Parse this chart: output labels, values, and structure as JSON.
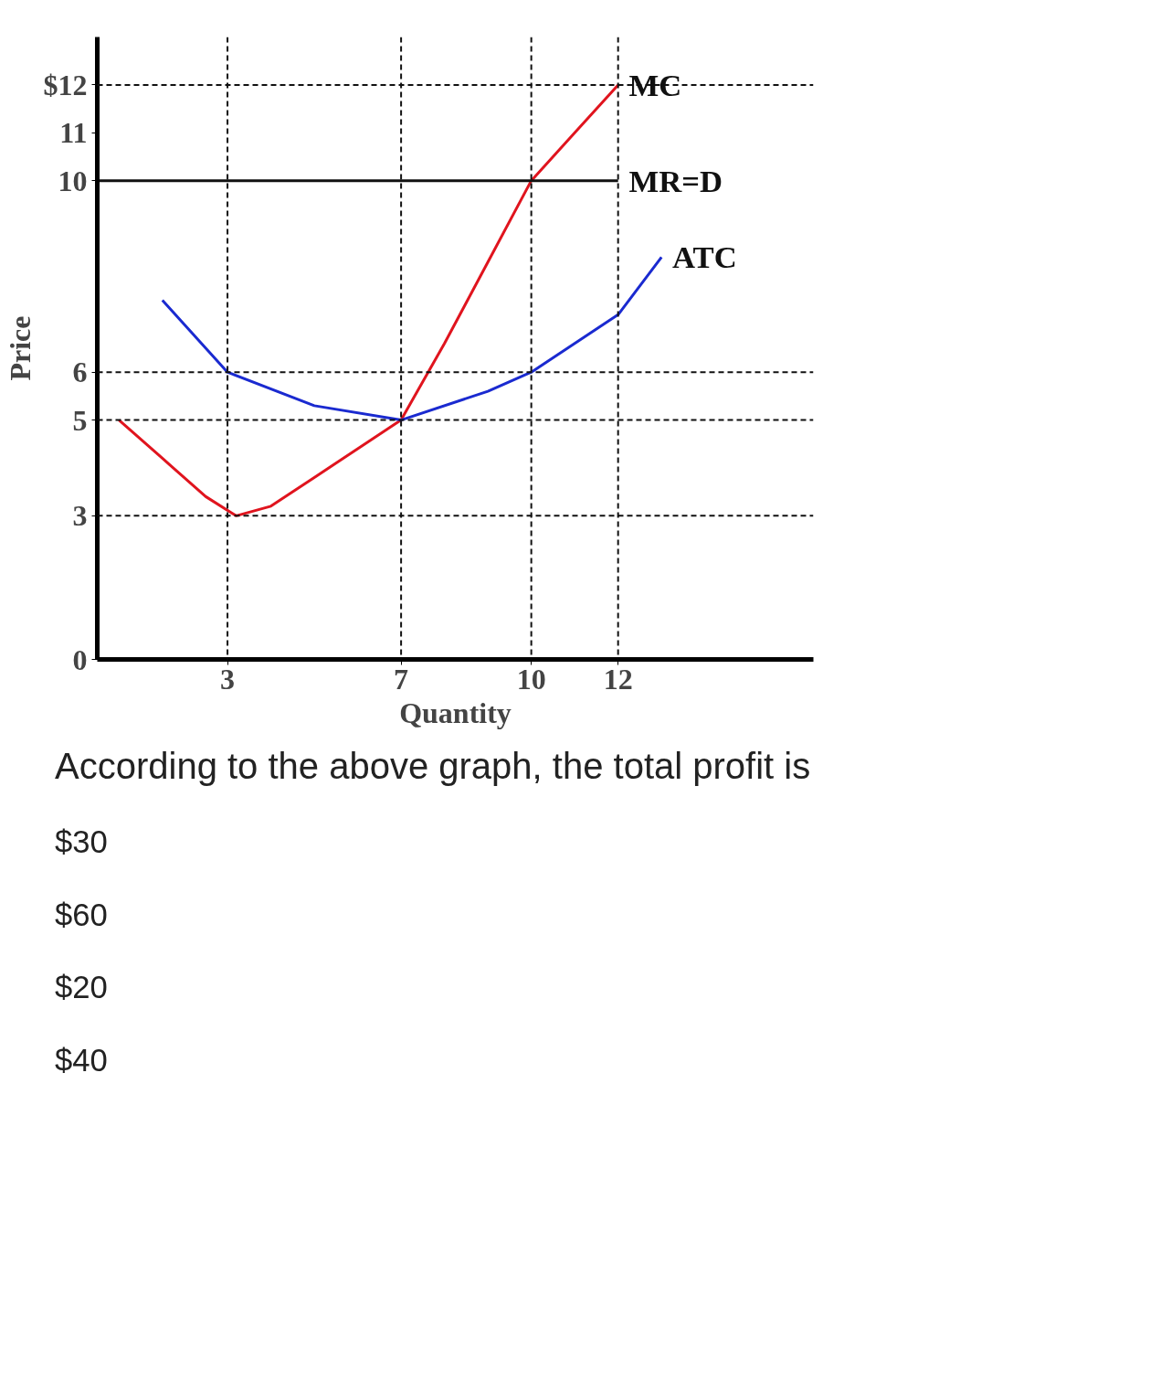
{
  "chart_data": {
    "type": "line",
    "xlabel": "Quantity",
    "ylabel": "Price",
    "xlim": [
      0,
      16.5
    ],
    "ylim": [
      0,
      13
    ],
    "xticks": [
      3,
      7,
      10,
      12
    ],
    "yticks": [
      0,
      3,
      5,
      6,
      10,
      11,
      {
        "value": 12,
        "label": "$12"
      }
    ],
    "grid": false,
    "marker": "none",
    "line_style": "solid",
    "series": [
      {
        "name": "MC",
        "color": "#e0141e",
        "x": [
          0.5,
          1.5,
          2.5,
          3.2,
          4,
          5,
          6,
          7,
          8,
          9,
          10,
          11,
          12
        ],
        "values": [
          5,
          4.2,
          3.4,
          3,
          3.2,
          3.8,
          4.4,
          5,
          6.6,
          8.3,
          10,
          11,
          12
        ]
      },
      {
        "name": "MR=D",
        "color": "#111111",
        "x": [
          0,
          12
        ],
        "values": [
          10,
          10
        ]
      },
      {
        "name": "ATC",
        "color": "#1a2ad0",
        "x": [
          1.5,
          3,
          5,
          7,
          9,
          10,
          12,
          13
        ],
        "values": [
          7.5,
          6,
          5.3,
          5,
          5.6,
          6,
          7.2,
          8.4
        ]
      }
    ],
    "ref_lines": [
      {
        "axis": "y",
        "value": 12,
        "line_style": "dashed",
        "color": "#111111"
      },
      {
        "axis": "y",
        "value": 6,
        "line_style": "dashed",
        "color": "#111111"
      },
      {
        "axis": "y",
        "value": 5,
        "line_style": "dashed",
        "color": "#111111"
      },
      {
        "axis": "y",
        "value": 3,
        "line_style": "dashed",
        "color": "#111111"
      },
      {
        "axis": "x",
        "value": 3,
        "line_style": "dashed",
        "color": "#111111"
      },
      {
        "axis": "x",
        "value": 7,
        "line_style": "dashed",
        "color": "#111111"
      },
      {
        "axis": "x",
        "value": 10,
        "line_style": "dashed",
        "color": "#111111"
      },
      {
        "axis": "x",
        "value": 12,
        "line_style": "dashed",
        "color": "#111111"
      }
    ],
    "annotations": [
      "According to the above graph, the total profit is",
      "$30",
      "$60",
      "$20",
      "$40"
    ]
  }
}
